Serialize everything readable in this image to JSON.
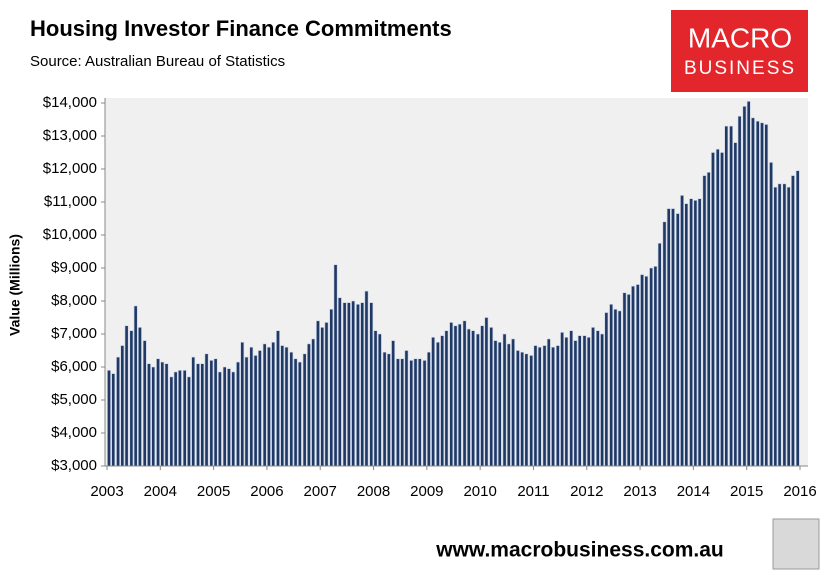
{
  "chart_data": {
    "type": "bar",
    "title": "Housing Investor Finance Commitments",
    "subtitle": "Source: Australian Bureau of Statistics",
    "y_label": "Value (Millions)",
    "color": "#1f3864",
    "grid": false,
    "xlim": [
      2003,
      2016
    ],
    "xticks": [
      2003,
      2004,
      2005,
      2006,
      2007,
      2008,
      2009,
      2010,
      2011,
      2012,
      2013,
      2014,
      2015,
      2016
    ],
    "ylim": [
      3000,
      14000
    ],
    "yticks": [
      {
        "value": 3000,
        "label": "$3,000"
      },
      {
        "value": 4000,
        "label": "$4,000"
      },
      {
        "value": 5000,
        "label": "$5,000"
      },
      {
        "value": 6000,
        "label": "$6,000"
      },
      {
        "value": 7000,
        "label": "$7,000"
      },
      {
        "value": 8000,
        "label": "$8,000"
      },
      {
        "value": 9000,
        "label": "$9,000"
      },
      {
        "value": 10000,
        "label": "$10,000"
      },
      {
        "value": 11000,
        "label": "$11,000"
      },
      {
        "value": 12000,
        "label": "$12,000"
      },
      {
        "value": 13000,
        "label": "$13,000"
      },
      {
        "value": 14000,
        "label": "$14,000"
      }
    ],
    "x": [
      2003.0,
      2003.08,
      2003.17,
      2003.25,
      2003.33,
      2003.42,
      2003.5,
      2003.58,
      2003.67,
      2003.75,
      2003.83,
      2003.92,
      2004.0,
      2004.08,
      2004.17,
      2004.25,
      2004.33,
      2004.42,
      2004.5,
      2004.58,
      2004.67,
      2004.75,
      2004.83,
      2004.92,
      2005.0,
      2005.08,
      2005.17,
      2005.25,
      2005.33,
      2005.42,
      2005.5,
      2005.58,
      2005.67,
      2005.75,
      2005.83,
      2005.92,
      2006.0,
      2006.08,
      2006.17,
      2006.25,
      2006.33,
      2006.42,
      2006.5,
      2006.58,
      2006.67,
      2006.75,
      2006.83,
      2006.92,
      2007.0,
      2007.08,
      2007.17,
      2007.25,
      2007.33,
      2007.42,
      2007.5,
      2007.58,
      2007.67,
      2007.75,
      2007.83,
      2007.92,
      2008.0,
      2008.08,
      2008.17,
      2008.25,
      2008.33,
      2008.42,
      2008.5,
      2008.58,
      2008.67,
      2008.75,
      2008.83,
      2008.92,
      2009.0,
      2009.08,
      2009.17,
      2009.25,
      2009.33,
      2009.42,
      2009.5,
      2009.58,
      2009.67,
      2009.75,
      2009.83,
      2009.92,
      2010.0,
      2010.08,
      2010.17,
      2010.25,
      2010.33,
      2010.42,
      2010.5,
      2010.58,
      2010.67,
      2010.75,
      2010.83,
      2010.92,
      2011.0,
      2011.08,
      2011.17,
      2011.25,
      2011.33,
      2011.42,
      2011.5,
      2011.58,
      2011.67,
      2011.75,
      2011.83,
      2011.92,
      2012.0,
      2012.08,
      2012.17,
      2012.25,
      2012.33,
      2012.42,
      2012.5,
      2012.58,
      2012.67,
      2012.75,
      2012.83,
      2012.92,
      2013.0,
      2013.08,
      2013.17,
      2013.25,
      2013.33,
      2013.42,
      2013.5,
      2013.58,
      2013.67,
      2013.75,
      2013.83,
      2013.92,
      2014.0,
      2014.08,
      2014.17,
      2014.25,
      2014.33,
      2014.42,
      2014.5,
      2014.58,
      2014.67,
      2014.75,
      2014.83,
      2014.92,
      2015.0,
      2015.08,
      2015.17,
      2015.25,
      2015.33,
      2015.42,
      2015.5,
      2015.58,
      2015.67,
      2015.75,
      2015.83,
      2015.92
    ],
    "values": [
      5900,
      5800,
      6300,
      6650,
      7250,
      7100,
      7850,
      7200,
      6800,
      6100,
      6000,
      6250,
      6150,
      6100,
      5700,
      5850,
      5900,
      5900,
      5700,
      6300,
      6100,
      6100,
      6400,
      6200,
      6250,
      5850,
      6000,
      5950,
      5850,
      6150,
      6750,
      6300,
      6600,
      6350,
      6500,
      6700,
      6600,
      6750,
      7100,
      6650,
      6600,
      6450,
      6250,
      6150,
      6400,
      6700,
      6850,
      7400,
      7200,
      7350,
      7750,
      9100,
      8100,
      7950,
      7950,
      8000,
      7900,
      7950,
      8300,
      7950,
      7100,
      7000,
      6450,
      6400,
      6800,
      6250,
      6250,
      6500,
      6200,
      6250,
      6250,
      6200,
      6450,
      6900,
      6750,
      6950,
      7100,
      7350,
      7250,
      7300,
      7400,
      7150,
      7100,
      7000,
      7250,
      7500,
      7200,
      6800,
      6750,
      7000,
      6700,
      6850,
      6500,
      6450,
      6400,
      6350,
      6650,
      6600,
      6650,
      6850,
      6600,
      6650,
      7050,
      6900,
      7100,
      6800,
      6950,
      6950,
      6900,
      7200,
      7100,
      7000,
      7650,
      7900,
      7750,
      7700,
      8250,
      8200,
      8450,
      8500,
      8800,
      8750,
      9000,
      9050,
      9750,
      10400,
      10800,
      10800,
      10650,
      11200,
      10950,
      11100,
      11050,
      11100,
      11800,
      11900,
      12500,
      12600,
      12500,
      13300,
      13300,
      12800,
      13600,
      13900,
      14050,
      13550,
      13450,
      13400,
      13350,
      12200,
      11450,
      11550,
      11550,
      11450,
      11800,
      11950
    ]
  },
  "branding": {
    "logo": [
      "MACRO",
      "BUSINESS"
    ],
    "url": "www.macrobusiness.com.au"
  }
}
